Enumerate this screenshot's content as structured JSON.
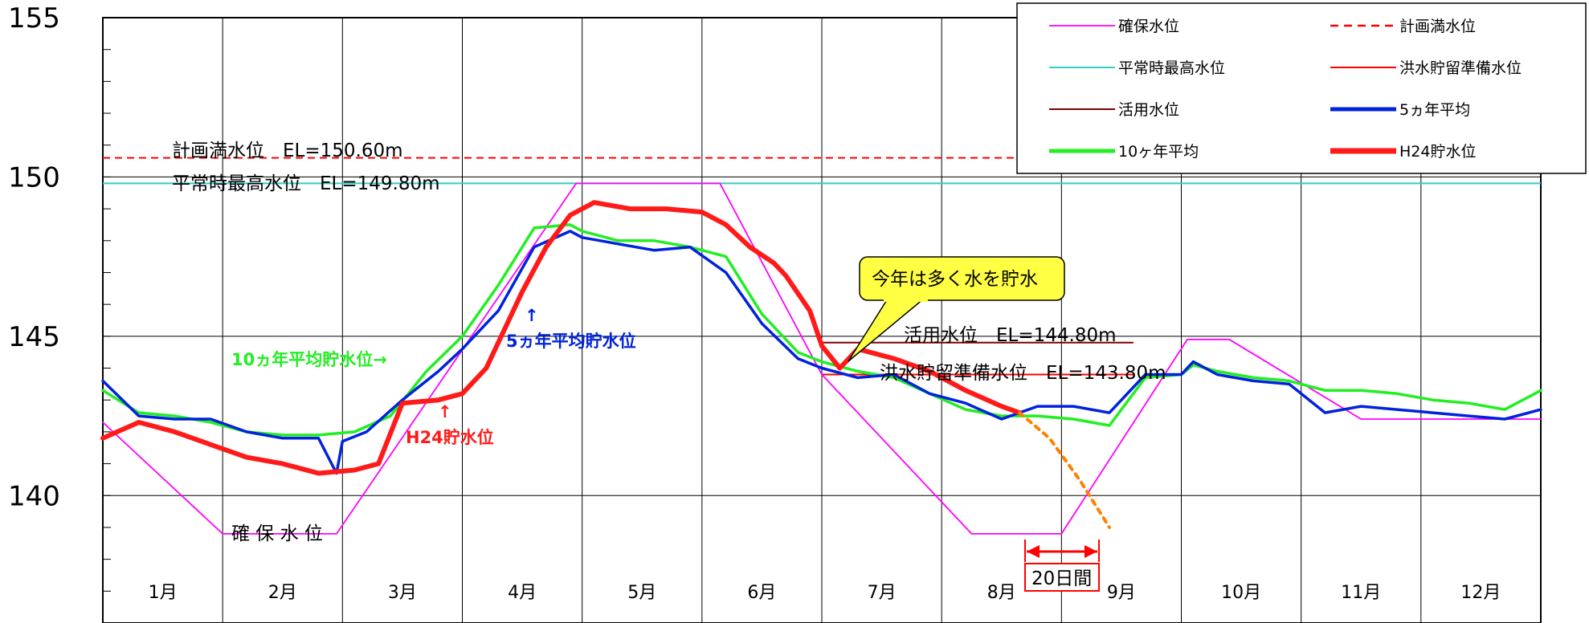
{
  "chart_data": {
    "type": "line",
    "ylim": [
      136,
      155
    ],
    "yticks": [
      "155",
      "150",
      "145",
      "140"
    ],
    "months": [
      "1月",
      "2月",
      "3月",
      "4月",
      "5月",
      "6月",
      "7月",
      "8月",
      "9月",
      "10月",
      "11月",
      "12月"
    ],
    "grid": true,
    "legend_position": "top-right",
    "horizontal_lines": [
      {
        "key": "planned",
        "value": 150.6
      },
      {
        "key": "normal_max",
        "value": 149.8
      }
    ],
    "segments": [
      {
        "key": "katsuyo",
        "value": 144.8,
        "x0": 6.0,
        "x1": 8.6
      },
      {
        "key": "kozui",
        "value": 143.8,
        "x0": 6.0,
        "x1": 8.6
      }
    ],
    "series": [
      {
        "key": "kakuho",
        "name": "確保水位",
        "x": [
          0,
          1.0,
          1.95,
          3.95,
          5.15,
          6.0,
          7.25,
          8.0,
          9.05,
          9.4,
          10.5,
          12.0
        ],
        "y": [
          142.3,
          138.8,
          138.8,
          149.8,
          149.8,
          143.8,
          138.8,
          138.8,
          144.9,
          144.9,
          142.4,
          142.4
        ]
      },
      {
        "key": "avg5",
        "name": "5ヵ年平均",
        "x": [
          0,
          0.3,
          0.6,
          0.9,
          1.2,
          1.5,
          1.8,
          1.95,
          2.0,
          2.2,
          2.5,
          2.8,
          3.0,
          3.3,
          3.6,
          3.9,
          4.0,
          4.3,
          4.6,
          4.9,
          5.2,
          5.5,
          5.8,
          6.0,
          6.3,
          6.6,
          6.9,
          7.2,
          7.5,
          7.8,
          8.1,
          8.4,
          8.7,
          9.0,
          9.1,
          9.3,
          9.6,
          9.9,
          10.2,
          10.5,
          10.8,
          11.1,
          11.4,
          11.7,
          12.0
        ],
        "y": [
          143.6,
          142.5,
          142.4,
          142.4,
          142.0,
          141.8,
          141.8,
          140.7,
          141.7,
          142.0,
          143.0,
          143.9,
          144.6,
          145.8,
          147.8,
          148.3,
          148.1,
          147.9,
          147.7,
          147.8,
          147.0,
          145.4,
          144.3,
          144.0,
          143.7,
          143.8,
          143.2,
          142.9,
          142.4,
          142.8,
          142.8,
          142.6,
          143.8,
          143.8,
          144.2,
          143.8,
          143.6,
          143.5,
          142.6,
          142.8,
          142.7,
          142.6,
          142.5,
          142.4,
          142.7
        ]
      },
      {
        "key": "avg10",
        "name": "10ヶ年平均",
        "x": [
          0,
          0.3,
          0.6,
          0.9,
          1.2,
          1.5,
          1.8,
          2.1,
          2.4,
          2.7,
          3.0,
          3.3,
          3.6,
          3.9,
          4.0,
          4.3,
          4.6,
          4.9,
          5.2,
          5.5,
          5.8,
          6.0,
          6.3,
          6.6,
          6.9,
          7.2,
          7.5,
          7.8,
          8.1,
          8.4,
          8.7,
          9.0,
          9.1,
          9.3,
          9.6,
          9.9,
          10.2,
          10.5,
          10.8,
          11.1,
          11.4,
          11.7,
          12.0
        ],
        "y": [
          143.3,
          142.6,
          142.5,
          142.3,
          142.0,
          141.9,
          141.9,
          142.0,
          142.5,
          143.9,
          145.0,
          146.6,
          148.4,
          148.5,
          148.3,
          148.0,
          148.0,
          147.8,
          147.5,
          145.7,
          144.5,
          144.2,
          143.9,
          143.7,
          143.2,
          142.7,
          142.5,
          142.5,
          142.4,
          142.2,
          143.7,
          143.8,
          144.1,
          143.9,
          143.7,
          143.6,
          143.3,
          143.3,
          143.2,
          143.0,
          142.9,
          142.7,
          143.3
        ]
      },
      {
        "key": "h24",
        "name": "H24貯水位",
        "x": [
          0,
          0.3,
          0.6,
          0.9,
          1.2,
          1.5,
          1.8,
          2.1,
          2.3,
          2.5,
          2.8,
          3.0,
          3.2,
          3.5,
          3.7,
          3.9,
          4.1,
          4.4,
          4.7,
          5.0,
          5.2,
          5.4,
          5.6,
          5.7,
          5.9,
          6.0,
          6.15,
          6.3,
          6.6,
          6.9,
          7.2,
          7.5,
          7.65
        ],
        "y": [
          141.8,
          142.3,
          142.0,
          141.6,
          141.2,
          141.0,
          140.7,
          140.8,
          141.0,
          142.9,
          143.0,
          143.2,
          144.0,
          146.4,
          147.8,
          148.8,
          149.2,
          149.0,
          149.0,
          148.9,
          148.5,
          147.8,
          147.3,
          146.9,
          145.8,
          144.7,
          144.0,
          144.6,
          144.3,
          143.9,
          143.3,
          142.8,
          142.6
        ]
      },
      {
        "key": "h24_forecast",
        "name": "",
        "x": [
          7.65,
          7.9,
          8.15,
          8.4
        ],
        "y": [
          142.6,
          141.8,
          140.5,
          139.0
        ]
      }
    ],
    "legend": [
      {
        "key": "kakuho",
        "label": "確保水位"
      },
      {
        "key": "planned",
        "label": "計画満水位"
      },
      {
        "key": "normal_max",
        "label": "平常時最高水位"
      },
      {
        "key": "kozui",
        "label": "洪水貯留準備水位"
      },
      {
        "key": "katsuyo",
        "label": "活用水位"
      },
      {
        "key": "avg5",
        "label": "5ヵ年平均"
      },
      {
        "key": "avg10",
        "label": "10ヶ年平均"
      },
      {
        "key": "h24",
        "label": "H24貯水位"
      }
    ],
    "annotations": {
      "planned": "計画満水位　EL=150.60m",
      "normal_max": "平常時最高水位　EL=149.80m",
      "katsuyo": "活用水位　EL=144.80m",
      "kozui": "洪水貯留準備水位　EL=143.80m",
      "kakuho": "確 保 水 位",
      "avg10": "10ヵ年平均貯水位→",
      "avg5": "5ヵ年平均貯水位",
      "h24": "H24貯水位",
      "callout": "今年は多く水を貯水",
      "gap": "20日間",
      "arrow": "↑"
    },
    "colors": {
      "kakuho": "#ff00ff",
      "planned": "#ff0000",
      "normal_max": "#33cccc",
      "kozui": "#ff0000",
      "katsuyo": "#800000",
      "avg5": "#0022dd",
      "avg10": "#22ee22",
      "h24": "#ff1a1a",
      "forecast": "#ff8000",
      "callout": "#ffff44"
    }
  }
}
